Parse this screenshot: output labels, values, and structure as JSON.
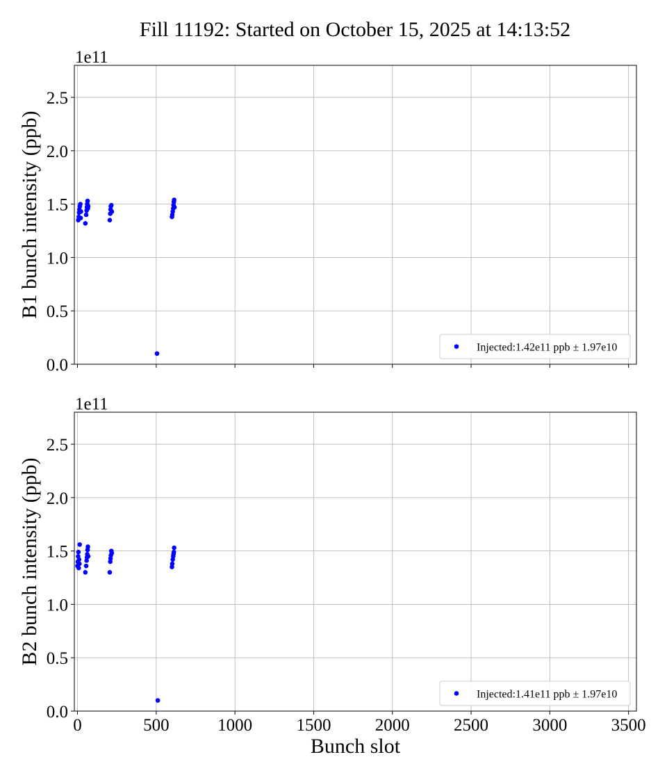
{
  "figure_title": "Fill 11192: Started on October 15, 2025 at 14:13:52",
  "chart_data": [
    {
      "type": "scatter",
      "ylabel": "B1 bunch intensity (ppb)",
      "xlabel": "",
      "y_offset_label": "1e11",
      "xlim": [
        -20,
        3550
      ],
      "ylim": [
        0,
        2.8
      ],
      "x_ticks": [
        0,
        500,
        1000,
        1500,
        2000,
        2500,
        3000,
        3500
      ],
      "y_ticks": [
        0.0,
        0.5,
        1.0,
        1.5,
        2.0,
        2.5
      ],
      "y_tick_labels": [
        "0.0",
        "0.5",
        "1.0",
        "1.5",
        "2.0",
        "2.5"
      ],
      "show_x_tick_labels": false,
      "grid": true,
      "legend_position": "lower-right",
      "series": [
        {
          "name": "Injected:1.42e11 ppb ± 1.97e10",
          "color": "#0000ff",
          "points": [
            [
              5,
              1.35
            ],
            [
              8,
              1.38
            ],
            [
              10,
              1.42
            ],
            [
              12,
              1.45
            ],
            [
              15,
              1.48
            ],
            [
              18,
              1.5
            ],
            [
              20,
              1.37
            ],
            [
              22,
              1.43
            ],
            [
              50,
              1.32
            ],
            [
              55,
              1.4
            ],
            [
              58,
              1.44
            ],
            [
              60,
              1.47
            ],
            [
              62,
              1.5
            ],
            [
              64,
              1.53
            ],
            [
              66,
              1.46
            ],
            [
              68,
              1.48
            ],
            [
              205,
              1.35
            ],
            [
              208,
              1.41
            ],
            [
              210,
              1.45
            ],
            [
              212,
              1.48
            ],
            [
              215,
              1.49
            ],
            [
              218,
              1.43
            ],
            [
              505,
              0.1
            ],
            [
              600,
              1.38
            ],
            [
              602,
              1.4
            ],
            [
              605,
              1.43
            ],
            [
              608,
              1.46
            ],
            [
              610,
              1.49
            ],
            [
              612,
              1.52
            ],
            [
              614,
              1.54
            ],
            [
              616,
              1.47
            ]
          ]
        }
      ]
    },
    {
      "type": "scatter",
      "ylabel": "B2 bunch intensity (ppb)",
      "xlabel": "Bunch slot",
      "y_offset_label": "1e11",
      "xlim": [
        -20,
        3550
      ],
      "ylim": [
        0,
        2.8
      ],
      "x_ticks": [
        0,
        500,
        1000,
        1500,
        2000,
        2500,
        3000,
        3500
      ],
      "x_tick_labels": [
        "0",
        "500",
        "1000",
        "1500",
        "2000",
        "2500",
        "3000",
        "3500"
      ],
      "y_ticks": [
        0.0,
        0.5,
        1.0,
        1.5,
        2.0,
        2.5
      ],
      "y_tick_labels": [
        "0.0",
        "0.5",
        "1.0",
        "1.5",
        "2.0",
        "2.5"
      ],
      "show_x_tick_labels": true,
      "grid": true,
      "legend_position": "lower-right",
      "series": [
        {
          "name": "Injected:1.41e11 ppb ± 1.97e10",
          "color": "#0000ff",
          "points": [
            [
              0,
              1.36
            ],
            [
              2,
              1.4
            ],
            [
              4,
              1.45
            ],
            [
              6,
              1.49
            ],
            [
              8,
              1.34
            ],
            [
              10,
              1.42
            ],
            [
              12,
              1.38
            ],
            [
              14,
              1.56
            ],
            [
              50,
              1.3
            ],
            [
              55,
              1.36
            ],
            [
              58,
              1.41
            ],
            [
              60,
              1.44
            ],
            [
              62,
              1.47
            ],
            [
              64,
              1.51
            ],
            [
              66,
              1.54
            ],
            [
              68,
              1.45
            ],
            [
              205,
              1.3
            ],
            [
              208,
              1.4
            ],
            [
              210,
              1.43
            ],
            [
              212,
              1.46
            ],
            [
              215,
              1.5
            ],
            [
              218,
              1.48
            ],
            [
              510,
              0.1
            ],
            [
              600,
              1.35
            ],
            [
              602,
              1.38
            ],
            [
              605,
              1.42
            ],
            [
              608,
              1.45
            ],
            [
              610,
              1.47
            ],
            [
              612,
              1.49
            ],
            [
              614,
              1.53
            ]
          ]
        }
      ]
    }
  ]
}
